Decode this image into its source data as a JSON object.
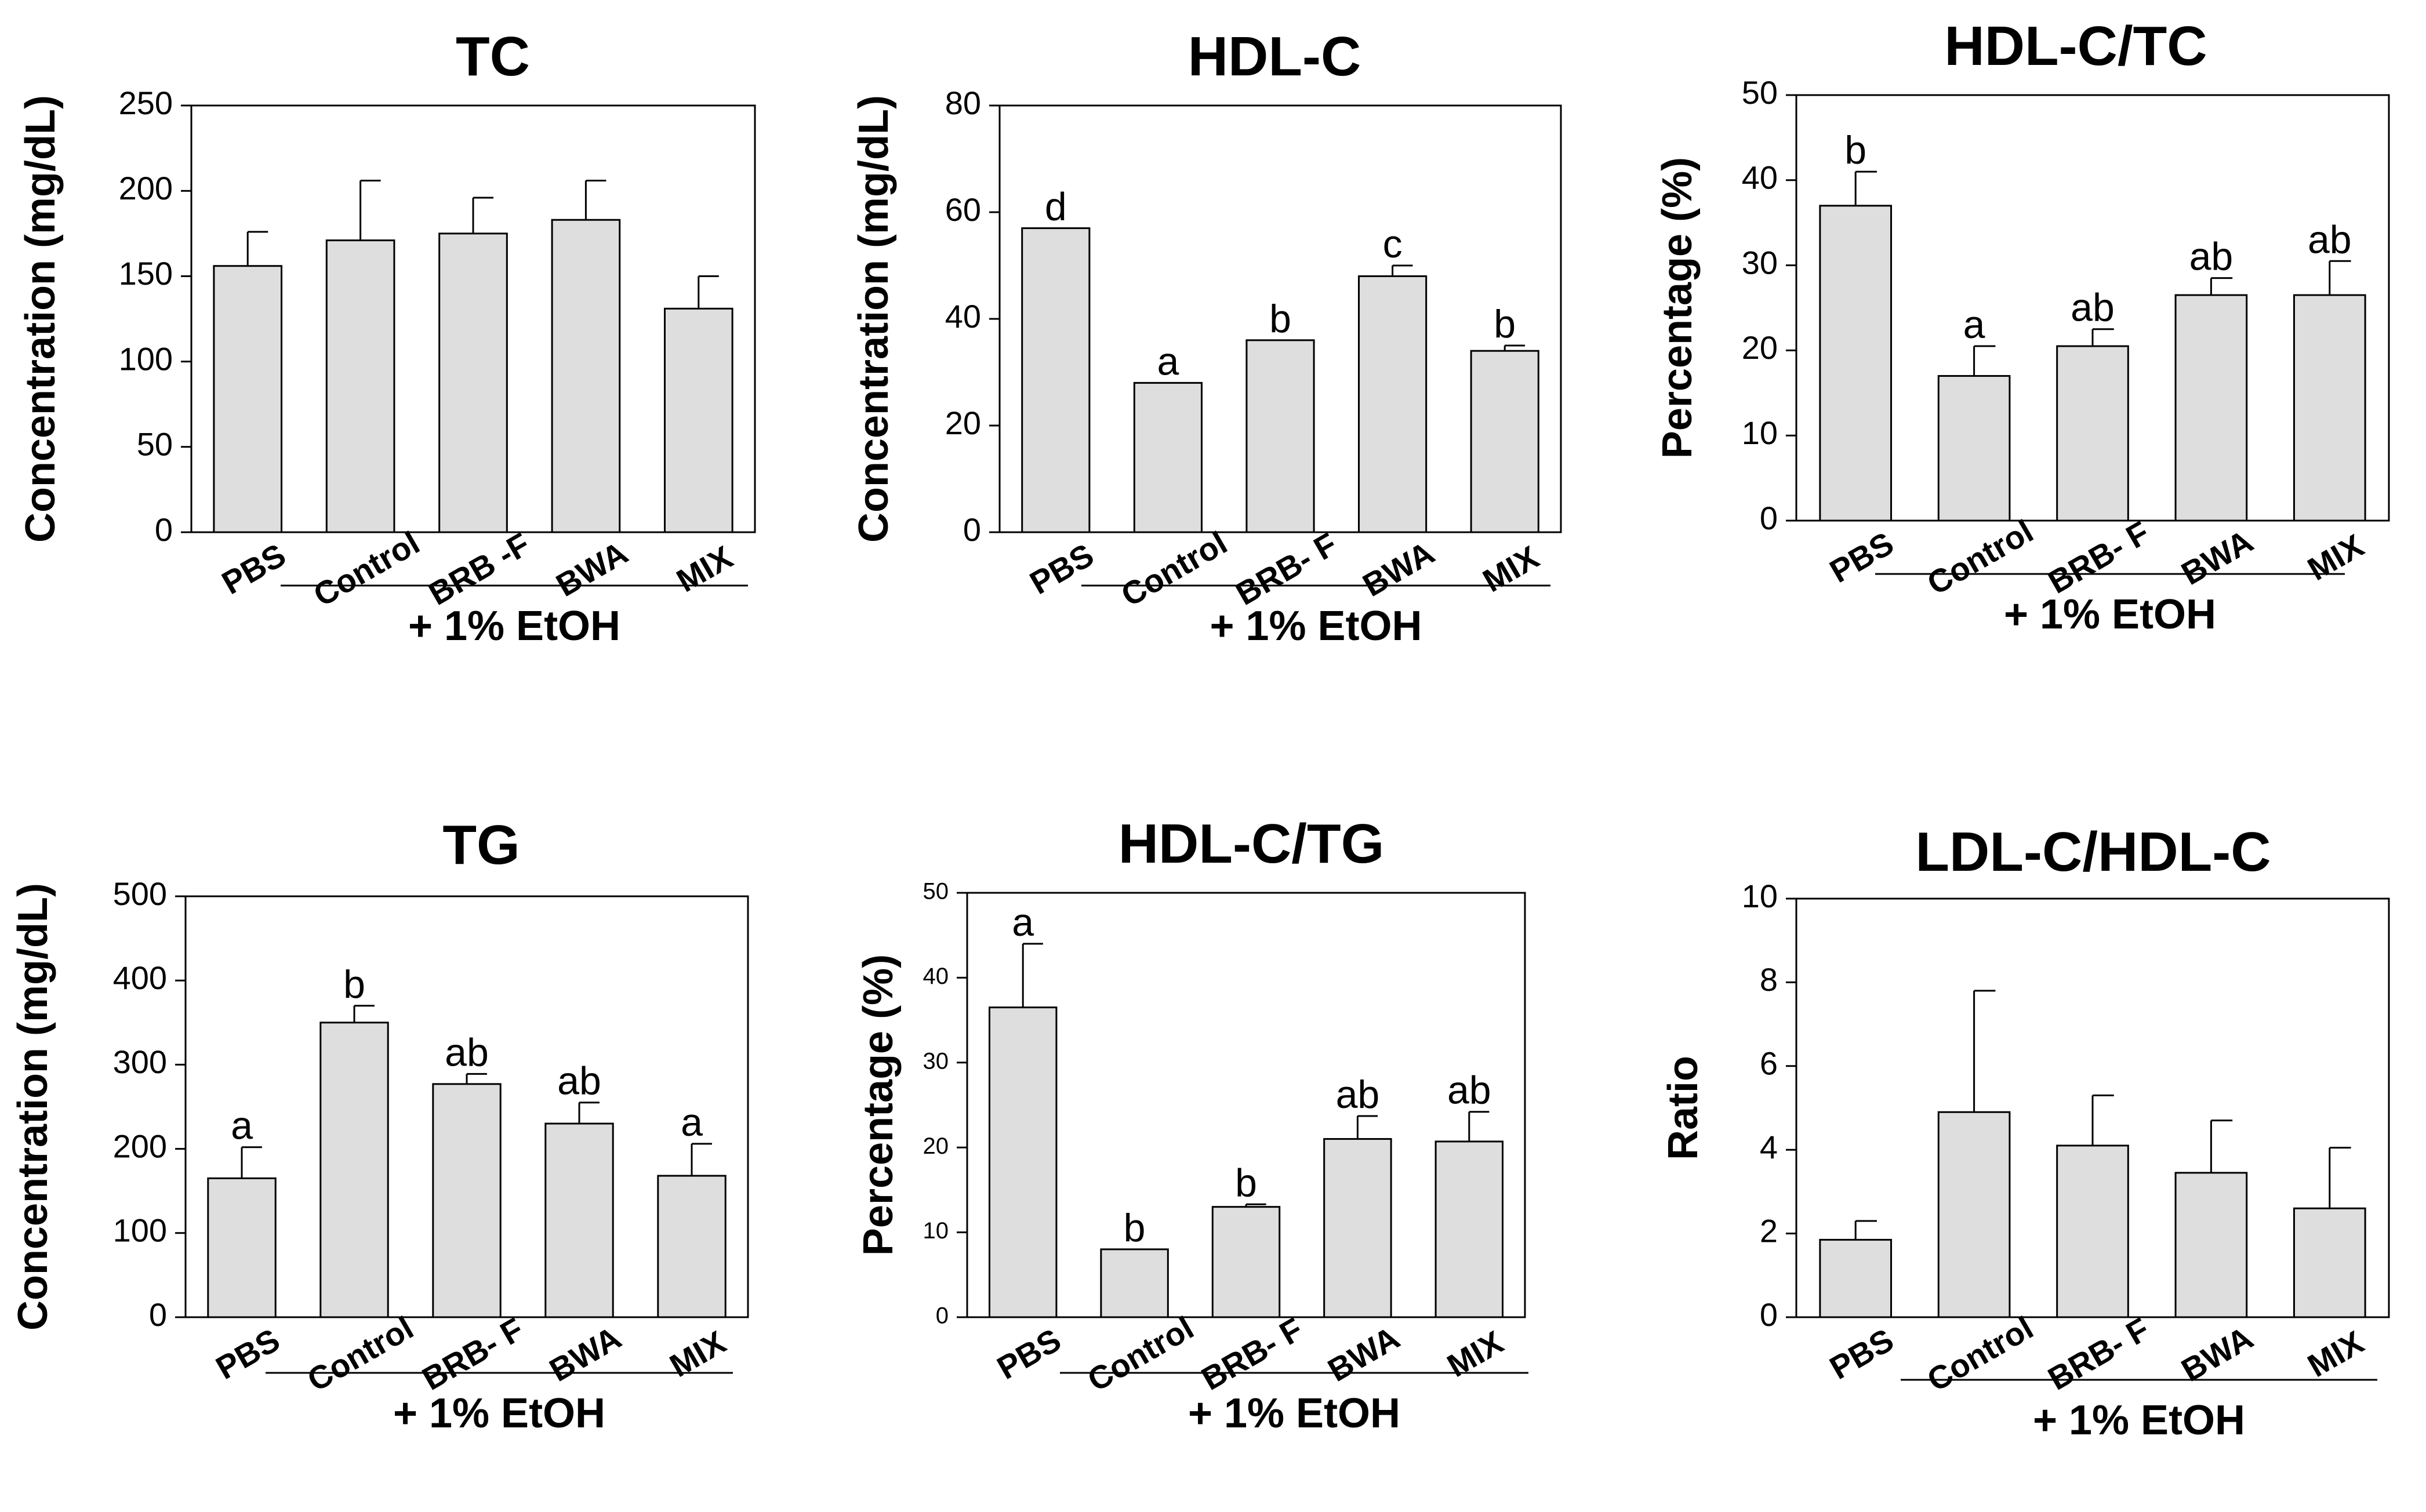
{
  "chart_data": [
    {
      "type": "bar",
      "title": "TC",
      "ylabel": "Concentration (mg/dL)",
      "ylim": [
        0,
        250
      ],
      "yticks": [
        0,
        50,
        100,
        150,
        200,
        250
      ],
      "categories": [
        "PBS",
        "Control",
        "BRB -F",
        "BWA",
        "MIX"
      ],
      "values": [
        156,
        171,
        175,
        183,
        131
      ],
      "errors": [
        20,
        35,
        21,
        23,
        19
      ],
      "significance": [
        "",
        "",
        "",
        "",
        ""
      ],
      "group_label": "+ 1% EtOH"
    },
    {
      "type": "bar",
      "title": "HDL-C",
      "ylabel": "Concentration (mg/dL)",
      "ylim": [
        0,
        80
      ],
      "yticks": [
        0,
        20,
        40,
        60,
        80
      ],
      "categories": [
        "PBS",
        "Control",
        "BRB- F",
        "BWA",
        "MIX"
      ],
      "values": [
        57,
        28,
        36,
        48,
        34
      ],
      "errors": [
        0,
        0,
        0,
        2,
        1
      ],
      "significance": [
        "d",
        "a",
        "b",
        "c",
        "b"
      ],
      "group_label": "+ 1% EtOH"
    },
    {
      "type": "bar",
      "title": "HDL-C/TC",
      "ylabel": "Percentage (%)",
      "ylim": [
        0,
        50
      ],
      "yticks": [
        0,
        10,
        20,
        30,
        40,
        50
      ],
      "categories": [
        "PBS",
        "Control",
        "BRB- F",
        "BWA",
        "MIX"
      ],
      "values": [
        37,
        17,
        20.5,
        26.5,
        26.5
      ],
      "errors": [
        4,
        3.5,
        2,
        2,
        4
      ],
      "significance": [
        "b",
        "a",
        "ab",
        "ab",
        "ab"
      ],
      "group_label": "+ 1% EtOH"
    },
    {
      "type": "bar",
      "title": "TG",
      "ylabel": "Concentration (mg/dL)",
      "ylim": [
        0,
        500
      ],
      "yticks": [
        0,
        100,
        200,
        300,
        400,
        500
      ],
      "categories": [
        "PBS",
        "Control",
        "BRB- F",
        "BWA",
        "MIX"
      ],
      "values": [
        165,
        350,
        277,
        230,
        168
      ],
      "errors": [
        37,
        20,
        12,
        25,
        38
      ],
      "significance": [
        "a",
        "b",
        "ab",
        "ab",
        "a"
      ],
      "group_label": "+ 1% EtOH"
    },
    {
      "type": "bar",
      "title": "HDL-C/TG",
      "ylabel": "Percentage (%)",
      "ylim": [
        0,
        50
      ],
      "yticks": [
        0,
        10,
        20,
        30,
        40,
        50
      ],
      "categories": [
        "PBS",
        "Control",
        "BRB- F",
        "BWA",
        "MIX"
      ],
      "values": [
        36.5,
        8,
        13,
        21,
        20.7
      ],
      "errors": [
        7.5,
        0,
        0.3,
        2.7,
        3.5
      ],
      "significance": [
        "a",
        "b",
        "b",
        "ab",
        "ab"
      ],
      "group_label": "+ 1% EtOH"
    },
    {
      "type": "bar",
      "title": "LDL-C/HDL-C",
      "ylabel": "Ratio",
      "ylim": [
        0,
        10
      ],
      "yticks": [
        0,
        2,
        4,
        6,
        8,
        10
      ],
      "categories": [
        "PBS",
        "Control",
        "BRB- F",
        "BWA",
        "MIX"
      ],
      "values": [
        1.85,
        4.9,
        4.1,
        3.45,
        2.6
      ],
      "errors": [
        0.45,
        2.9,
        1.2,
        1.25,
        1.45
      ],
      "significance": [
        "",
        "",
        "",
        "",
        ""
      ],
      "group_label": "+ 1% EtOH"
    }
  ],
  "colors": {
    "bar_fill": "#dedede",
    "stroke": "#000000"
  }
}
